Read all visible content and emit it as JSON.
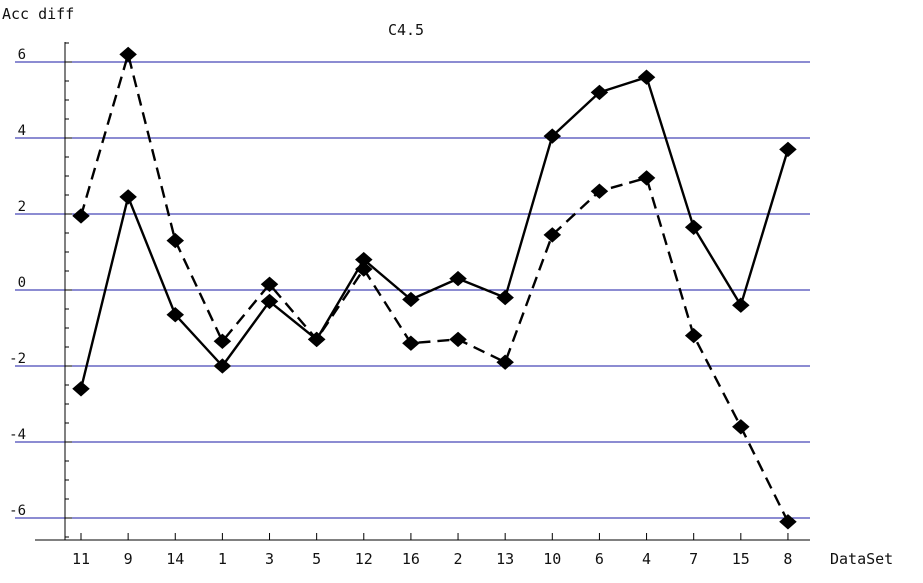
{
  "chart_data": {
    "type": "line",
    "title": "C4.5",
    "xlabel": "DataSet",
    "ylabel": "Acc diff",
    "categories": [
      "11",
      "9",
      "14",
      "1",
      "3",
      "5",
      "12",
      "16",
      "2",
      "13",
      "10",
      "6",
      "4",
      "7",
      "15",
      "8"
    ],
    "ylim": [
      -6.7,
      6.5
    ],
    "yticks": [
      -6,
      -4,
      -2,
      0,
      2,
      4,
      6
    ],
    "grid": true,
    "gridline_color": "#1a1aa6",
    "legend": "none",
    "series": [
      {
        "style": "solid",
        "marker": "diamond",
        "color": "#000000",
        "values": [
          -2.6,
          2.45,
          -0.65,
          -2.0,
          -0.3,
          -1.3,
          0.8,
          -0.25,
          0.3,
          -0.2,
          4.05,
          5.2,
          5.6,
          1.65,
          -0.4,
          3.7
        ]
      },
      {
        "style": "dashed",
        "marker": "diamond",
        "color": "#000000",
        "values": [
          1.95,
          6.2,
          1.3,
          -1.35,
          0.15,
          -1.3,
          0.55,
          -1.4,
          -1.3,
          -1.9,
          1.45,
          2.6,
          2.95,
          -1.2,
          -3.6,
          -6.1
        ]
      }
    ]
  }
}
